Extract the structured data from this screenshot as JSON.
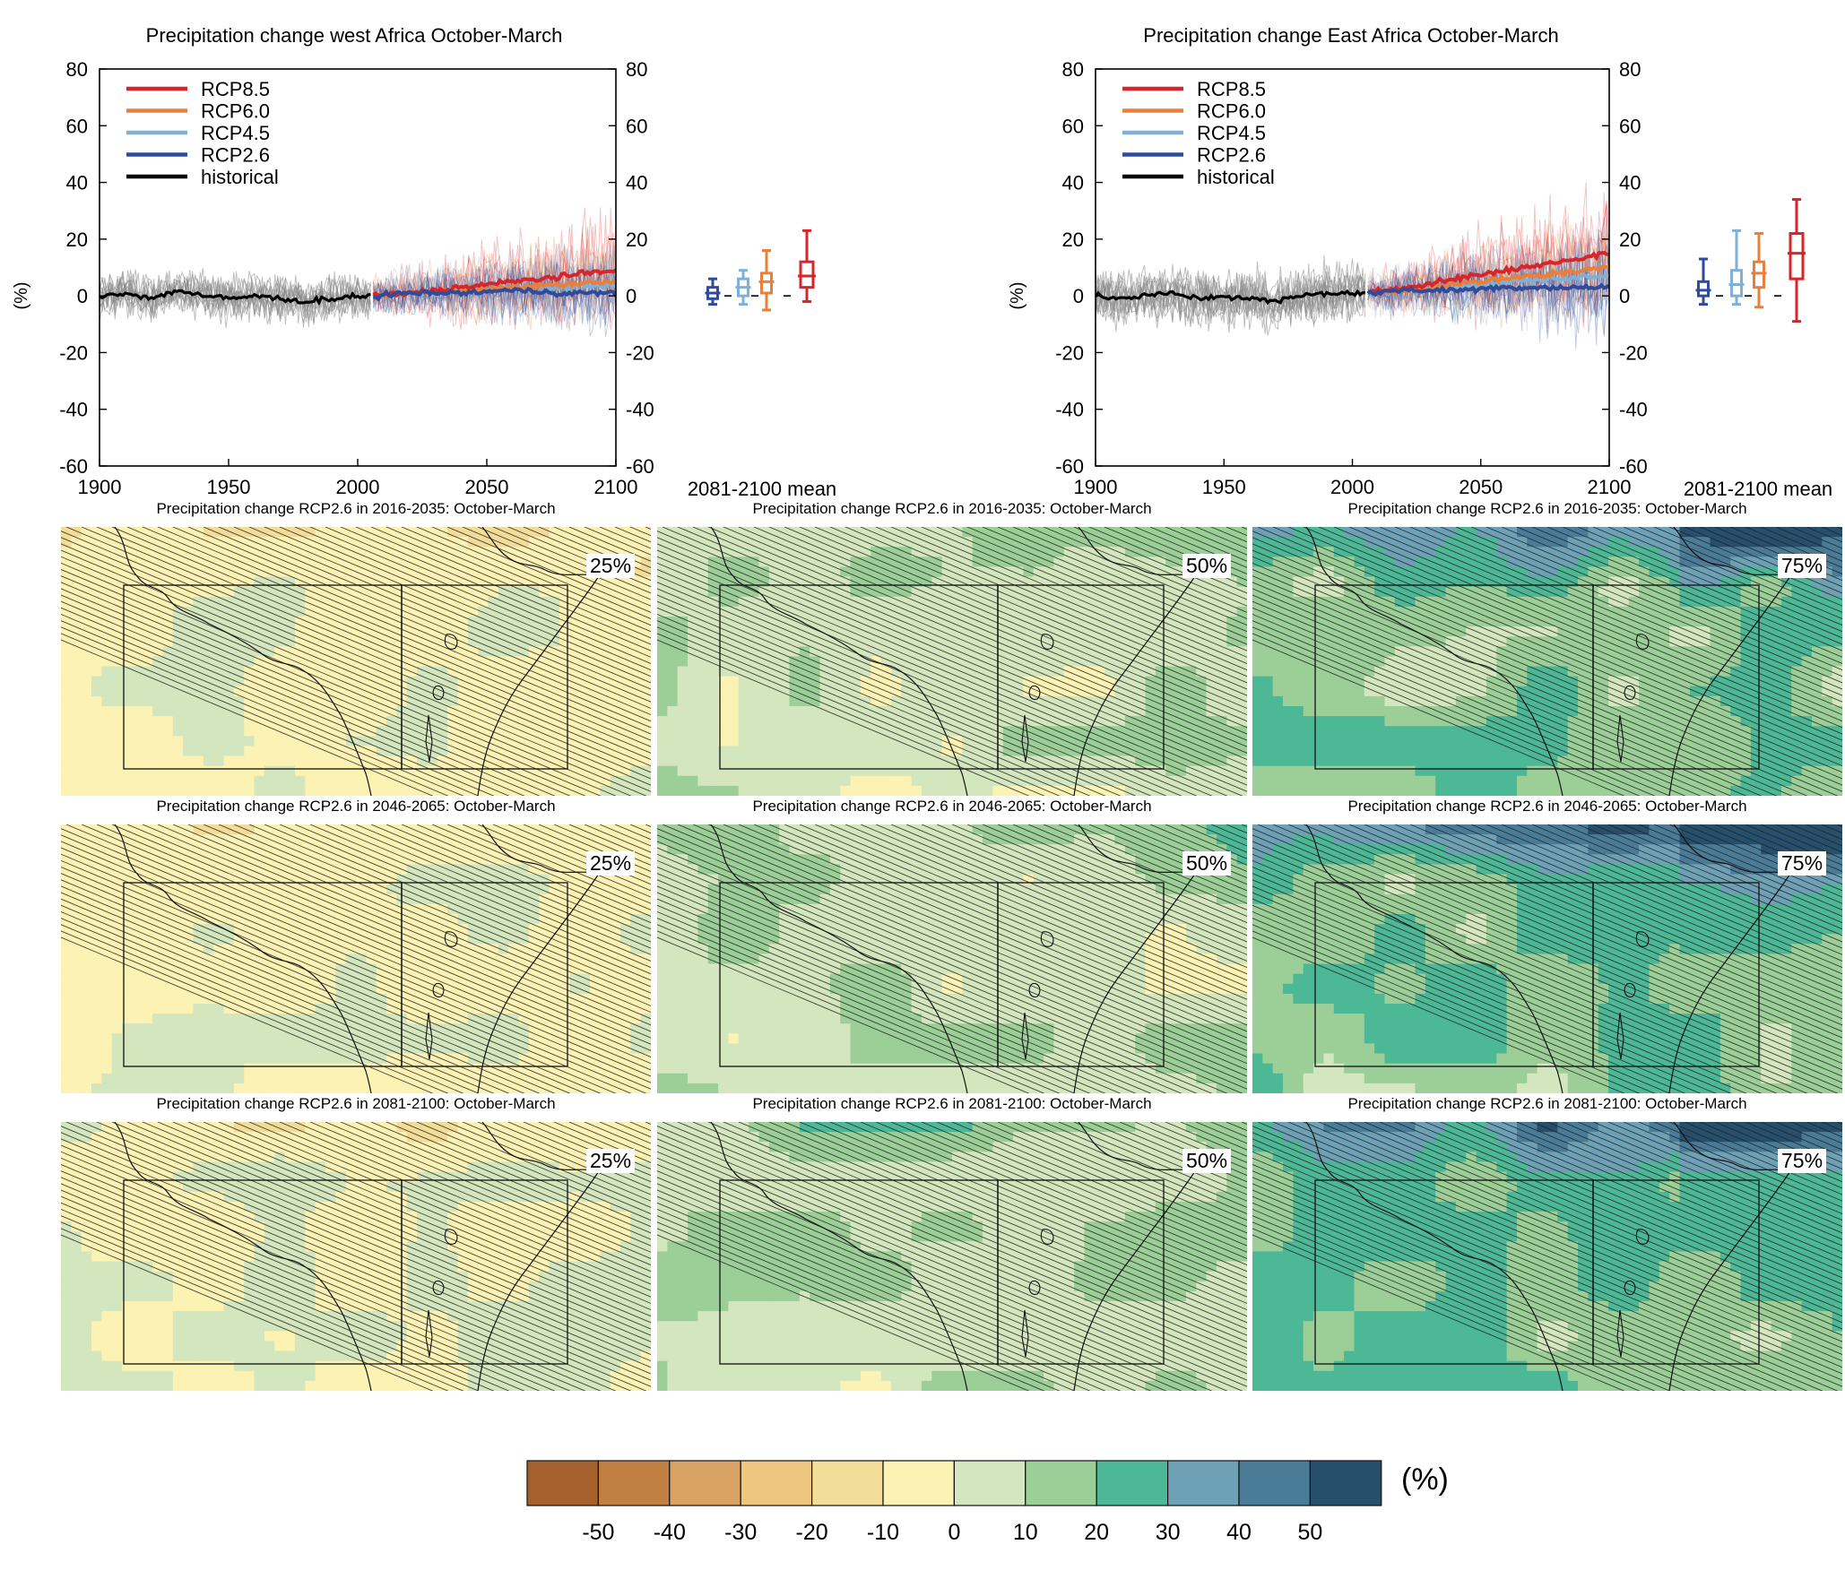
{
  "colors": {
    "rcp85": "#d7262b",
    "rcp60": "#e8803a",
    "rcp45": "#7fb1d8",
    "rcp26": "#2f4b9b",
    "historical": "#000000",
    "historical_spread": "#8a8a8a"
  },
  "timeseries": [
    {
      "title": "Precipitation change west Africa October-March",
      "ylabel": "(%)",
      "box_label": "2081-2100 mean",
      "legend": [
        "RCP8.5",
        "RCP6.0",
        "RCP4.5",
        "RCP2.6",
        "historical"
      ],
      "x_ticks": [
        "1900",
        "1950",
        "2000",
        "2050",
        "2100"
      ],
      "y_ticks": [
        "80",
        "60",
        "40",
        "20",
        "0",
        "-20",
        "-40",
        "-60"
      ]
    },
    {
      "title": "Precipitation change East Africa October-March",
      "ylabel": "(%)",
      "box_label": "2081-2100 mean",
      "legend": [
        "RCP8.5",
        "RCP6.0",
        "RCP4.5",
        "RCP2.6",
        "historical"
      ],
      "x_ticks": [
        "1900",
        "1950",
        "2000",
        "2050",
        "2100"
      ],
      "y_ticks": [
        "80",
        "60",
        "40",
        "20",
        "0",
        "-20",
        "-40",
        "-60"
      ]
    }
  ],
  "maps": {
    "row_titles": [
      "Precipitation change RCP2.6 in 2016-2035: October-March",
      "Precipitation change RCP2.6 in 2046-2065: October-March",
      "Precipitation change RCP2.6 in 2081-2100: October-March"
    ],
    "percentiles": [
      "25%",
      "50%",
      "75%"
    ]
  },
  "colorbar": {
    "unit": "(%)",
    "tick_labels": [
      "-50",
      "-40",
      "-30",
      "-20",
      "-10",
      "0",
      "10",
      "20",
      "30",
      "40",
      "50"
    ],
    "colors": [
      "#a5602e",
      "#c27f43",
      "#d9a265",
      "#eec67f",
      "#f3dc98",
      "#fbf2b3",
      "#d3e6bd",
      "#9ccf98",
      "#4db896",
      "#6fa1b6",
      "#4a7b97",
      "#264f6b"
    ]
  },
  "chart_data": [
    {
      "type": "line",
      "title": "Precipitation change west Africa October-March",
      "xlabel": "",
      "ylabel": "(%)",
      "xlim": [
        1900,
        2100
      ],
      "ylim": [
        -60,
        80
      ],
      "legend_position": "top-left",
      "series": [
        {
          "name": "historical",
          "x": [
            1900,
            1910,
            1920,
            1930,
            1940,
            1950,
            1960,
            1970,
            1980,
            1990,
            2000,
            2005
          ],
          "values": [
            0,
            1,
            -1,
            2,
            0,
            -1,
            0,
            -1,
            -2,
            -1,
            0,
            0
          ]
        },
        {
          "name": "RCP2.6",
          "x": [
            2006,
            2020,
            2040,
            2060,
            2080,
            2100
          ],
          "values": [
            0,
            1,
            1,
            2,
            1,
            1
          ]
        },
        {
          "name": "RCP4.5",
          "x": [
            2006,
            2020,
            2040,
            2060,
            2080,
            2100
          ],
          "values": [
            0,
            1,
            2,
            3,
            3,
            4
          ]
        },
        {
          "name": "RCP6.0",
          "x": [
            2006,
            2020,
            2040,
            2060,
            2080,
            2100
          ],
          "values": [
            0,
            1,
            2,
            3,
            4,
            5
          ]
        },
        {
          "name": "RCP8.5",
          "x": [
            2006,
            2020,
            2040,
            2060,
            2080,
            2100
          ],
          "values": [
            0,
            1,
            3,
            5,
            7,
            9
          ]
        }
      ],
      "box_2081_2100_mean": [
        {
          "name": "RCP2.6",
          "min": -3,
          "q1": -1,
          "median": 1,
          "q3": 3,
          "max": 6
        },
        {
          "name": "RCP4.5",
          "min": -3,
          "q1": 0,
          "median": 3,
          "q3": 6,
          "max": 9
        },
        {
          "name": "RCP6.0",
          "min": -5,
          "q1": 1,
          "median": 5,
          "q3": 8,
          "max": 16
        },
        {
          "name": "RCP8.5",
          "min": -2,
          "q1": 3,
          "median": 7,
          "q3": 12,
          "max": 23
        }
      ]
    },
    {
      "type": "line",
      "title": "Precipitation change East Africa October-March",
      "xlabel": "",
      "ylabel": "(%)",
      "xlim": [
        1900,
        2100
      ],
      "ylim": [
        -60,
        80
      ],
      "legend_position": "top-left",
      "series": [
        {
          "name": "historical",
          "x": [
            1900,
            1910,
            1920,
            1930,
            1940,
            1950,
            1960,
            1970,
            1980,
            1990,
            2000,
            2005
          ],
          "values": [
            0,
            -1,
            0,
            1,
            -1,
            0,
            -1,
            -2,
            0,
            1,
            1,
            1
          ]
        },
        {
          "name": "RCP2.6",
          "x": [
            2006,
            2020,
            2040,
            2060,
            2080,
            2100
          ],
          "values": [
            1,
            2,
            2,
            3,
            3,
            3
          ]
        },
        {
          "name": "RCP4.5",
          "x": [
            2006,
            2020,
            2040,
            2060,
            2080,
            2100
          ],
          "values": [
            1,
            2,
            3,
            5,
            6,
            7
          ]
        },
        {
          "name": "RCP6.0",
          "x": [
            2006,
            2020,
            2040,
            2060,
            2080,
            2100
          ],
          "values": [
            1,
            2,
            4,
            6,
            8,
            10
          ]
        },
        {
          "name": "RCP8.5",
          "x": [
            2006,
            2020,
            2040,
            2060,
            2080,
            2100
          ],
          "values": [
            1,
            3,
            6,
            9,
            12,
            15
          ]
        }
      ],
      "box_2081_2100_mean": [
        {
          "name": "RCP2.6",
          "min": -3,
          "q1": 0,
          "median": 2,
          "q3": 5,
          "max": 13
        },
        {
          "name": "RCP4.5",
          "min": -3,
          "q1": 0,
          "median": 4,
          "q3": 9,
          "max": 23
        },
        {
          "name": "RCP6.0",
          "min": -4,
          "q1": 3,
          "median": 8,
          "q3": 12,
          "max": 22
        },
        {
          "name": "RCP8.5",
          "min": -9,
          "q1": 6,
          "median": 15,
          "q3": 22,
          "max": 34
        }
      ]
    }
  ]
}
